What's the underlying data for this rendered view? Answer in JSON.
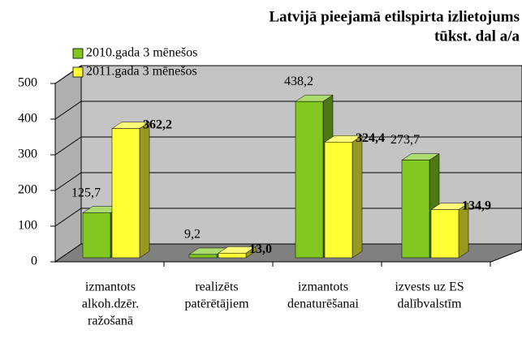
{
  "chart_data": {
    "type": "bar3d",
    "title": "Latvijā pieejamā etilspirta izlietojums",
    "subtitle": "tūkst. dal a/a",
    "categories": [
      [
        "izmantots",
        "alkoh.dzēr.",
        "ražošanā"
      ],
      [
        "realizēts",
        "patērētājiem"
      ],
      [
        "izmantots",
        "denaturēšanai"
      ],
      [
        "izvests uz ES",
        "dalībvalstīm"
      ]
    ],
    "series": [
      {
        "name": "2010.gada 3 mēnešos",
        "color": "#80c820",
        "values": [
          125.7,
          9.2,
          438.2,
          273.7
        ],
        "value_labels": [
          "125,7",
          "9,2",
          "438,2",
          "273,7"
        ]
      },
      {
        "name": "2011.gada 3 mēnešos",
        "color": "#ffff33",
        "values": [
          362.2,
          13.0,
          324.4,
          134.9
        ],
        "value_labels": [
          "362,2",
          "13,0",
          "324,4",
          "134,9"
        ]
      }
    ],
    "ylim": [
      0,
      500
    ],
    "yticks": [
      0,
      100,
      200,
      300,
      400,
      500
    ],
    "grid": true,
    "legend": "upper left"
  }
}
